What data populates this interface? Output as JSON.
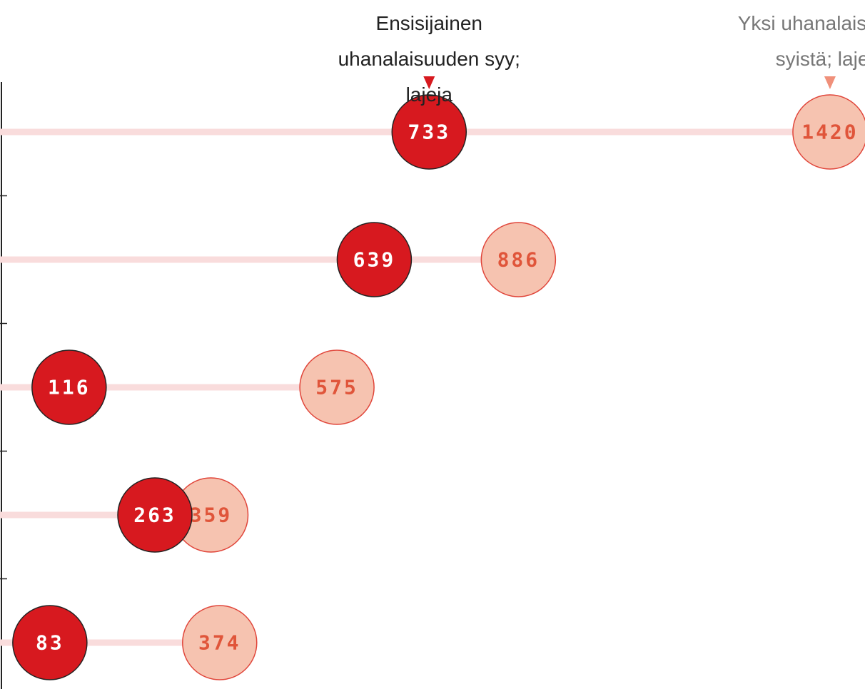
{
  "chart_data": {
    "type": "dumbbell",
    "categories": [
      null,
      null,
      null,
      null,
      null
    ],
    "series": [
      {
        "name": "Ensisijainen uhanalaisuuden syy; lajeja",
        "color": "#d7191f",
        "values": [
          733,
          639,
          116,
          263,
          83
        ]
      },
      {
        "name": "Yksi uhanalaisuuden syistä; lajeja",
        "color": "#f6c3b0",
        "values": [
          1420,
          886,
          575,
          359,
          374
        ]
      }
    ],
    "xlim": [
      0,
      1480
    ]
  }
}
